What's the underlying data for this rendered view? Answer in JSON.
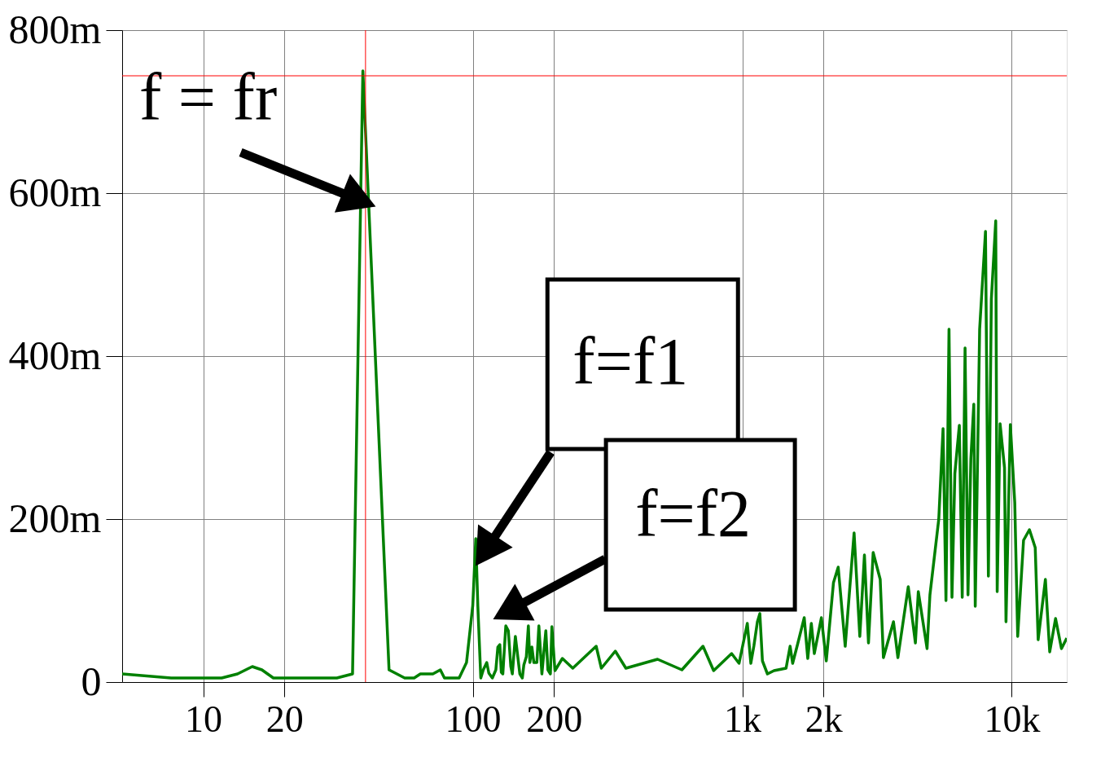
{
  "chart_data": {
    "type": "line",
    "x": [
      5,
      7.6,
      11.7,
      13.4,
      15.2,
      16.5,
      18.2,
      31.3,
      35.8,
      39.1,
      48.9,
      55.9,
      60.6,
      63.9,
      71.1,
      75.8,
      78.5,
      89.0,
      94.8,
      100,
      102.6,
      104.4,
      107.1,
      109.4,
      112.7,
      114.7,
      118.2,
      121.8,
      123.9,
      126.0,
      127.6,
      129.3,
      132.6,
      135.5,
      138.4,
      140.2,
      143.9,
      149.5,
      152.7,
      154.7,
      158.0,
      160.8,
      162.9,
      165.7,
      168.5,
      172.9,
      175.9,
      180.5,
      186.7,
      190.0,
      194.1,
      196.6,
      201.8,
      215,
      235,
      287,
      300,
      338,
      370,
      485,
      597,
      715,
      783,
      913,
      973,
      1044,
      1076,
      1104,
      1138,
      1162,
      1188,
      1240,
      1311,
      1454,
      1505,
      1538,
      1606,
      1698,
      1750,
      1804,
      1851,
      1966,
      2050,
      2180,
      2270,
      2410,
      2600,
      2730,
      2840,
      2940,
      3060,
      3250,
      3340,
      3640,
      3780,
      4130,
      4390,
      4500,
      4850,
      4970,
      5360,
      5560,
      5700,
      5850,
      6000,
      6150,
      6390,
      6550,
      6710,
      6880,
      7050,
      7230,
      7320,
      7600,
      7990,
      8190,
      8400,
      8720,
      8830,
      9050,
      9400,
      9520,
      9880,
      10260,
      10520,
      11060,
      11630,
      12220,
      12530,
      13330,
      13830,
      14540,
      15290,
      16000
    ],
    "series": [
      {
        "color": "#008000",
        "values": [
          10,
          5,
          5,
          10,
          19,
          15,
          5,
          5,
          10,
          750,
          15,
          5,
          5,
          10,
          10,
          15,
          5,
          5,
          24,
          94,
          176,
          94,
          5,
          15,
          24,
          11,
          5,
          15,
          43,
          46,
          12,
          10,
          69,
          63,
          19,
          10,
          56,
          10,
          5,
          21,
          31,
          69,
          24,
          43,
          24,
          24,
          69,
          10,
          63,
          15,
          10,
          68,
          14,
          29,
          17,
          44,
          17,
          38,
          17,
          28,
          15,
          44,
          14,
          35,
          23,
          72,
          23,
          44,
          74,
          84,
          26,
          10,
          14,
          17,
          44,
          23,
          47,
          79,
          29,
          72,
          35,
          79,
          26,
          122,
          141,
          44,
          183,
          56,
          156,
          48,
          159,
          126,
          30,
          74,
          30,
          117,
          48,
          111,
          41,
          107,
          200,
          311,
          100,
          433,
          104,
          256,
          315,
          104,
          410,
          107,
          274,
          341,
          93,
          433,
          553,
          130,
          470,
          566,
          111,
          317,
          263,
          74,
          316,
          220,
          56,
          174,
          187,
          165,
          52,
          126,
          37,
          78,
          41,
          54
        ]
      }
    ],
    "log": "x",
    "xlim": [
      5,
      16000
    ],
    "xticks": [
      10,
      20,
      100,
      200,
      {
        "value": 1000,
        "label": "1k"
      },
      {
        "value": 2000,
        "label": "2k"
      },
      {
        "value": 10000,
        "label": "10k"
      }
    ],
    "ylim": [
      0,
      800
    ],
    "yticks": [
      0,
      {
        "value": 200,
        "label": "200m"
      },
      {
        "value": 400,
        "label": "400m"
      },
      {
        "value": 600,
        "label": "600m"
      },
      {
        "value": 800,
        "label": "800m"
      }
    ],
    "grid": true,
    "ref_lines": [
      {
        "axis": "y",
        "value": 744,
        "color": "#ff0000"
      },
      {
        "axis": "x",
        "value": 40,
        "color": "#ff0000"
      }
    ],
    "annotations": [
      {
        "text": "f = fr",
        "x": 39.1,
        "y": 750
      },
      {
        "text": "f=f1",
        "x": 102.6,
        "y": 176
      },
      {
        "text": "f=f2",
        "x": 132.6,
        "y": 69
      }
    ]
  }
}
